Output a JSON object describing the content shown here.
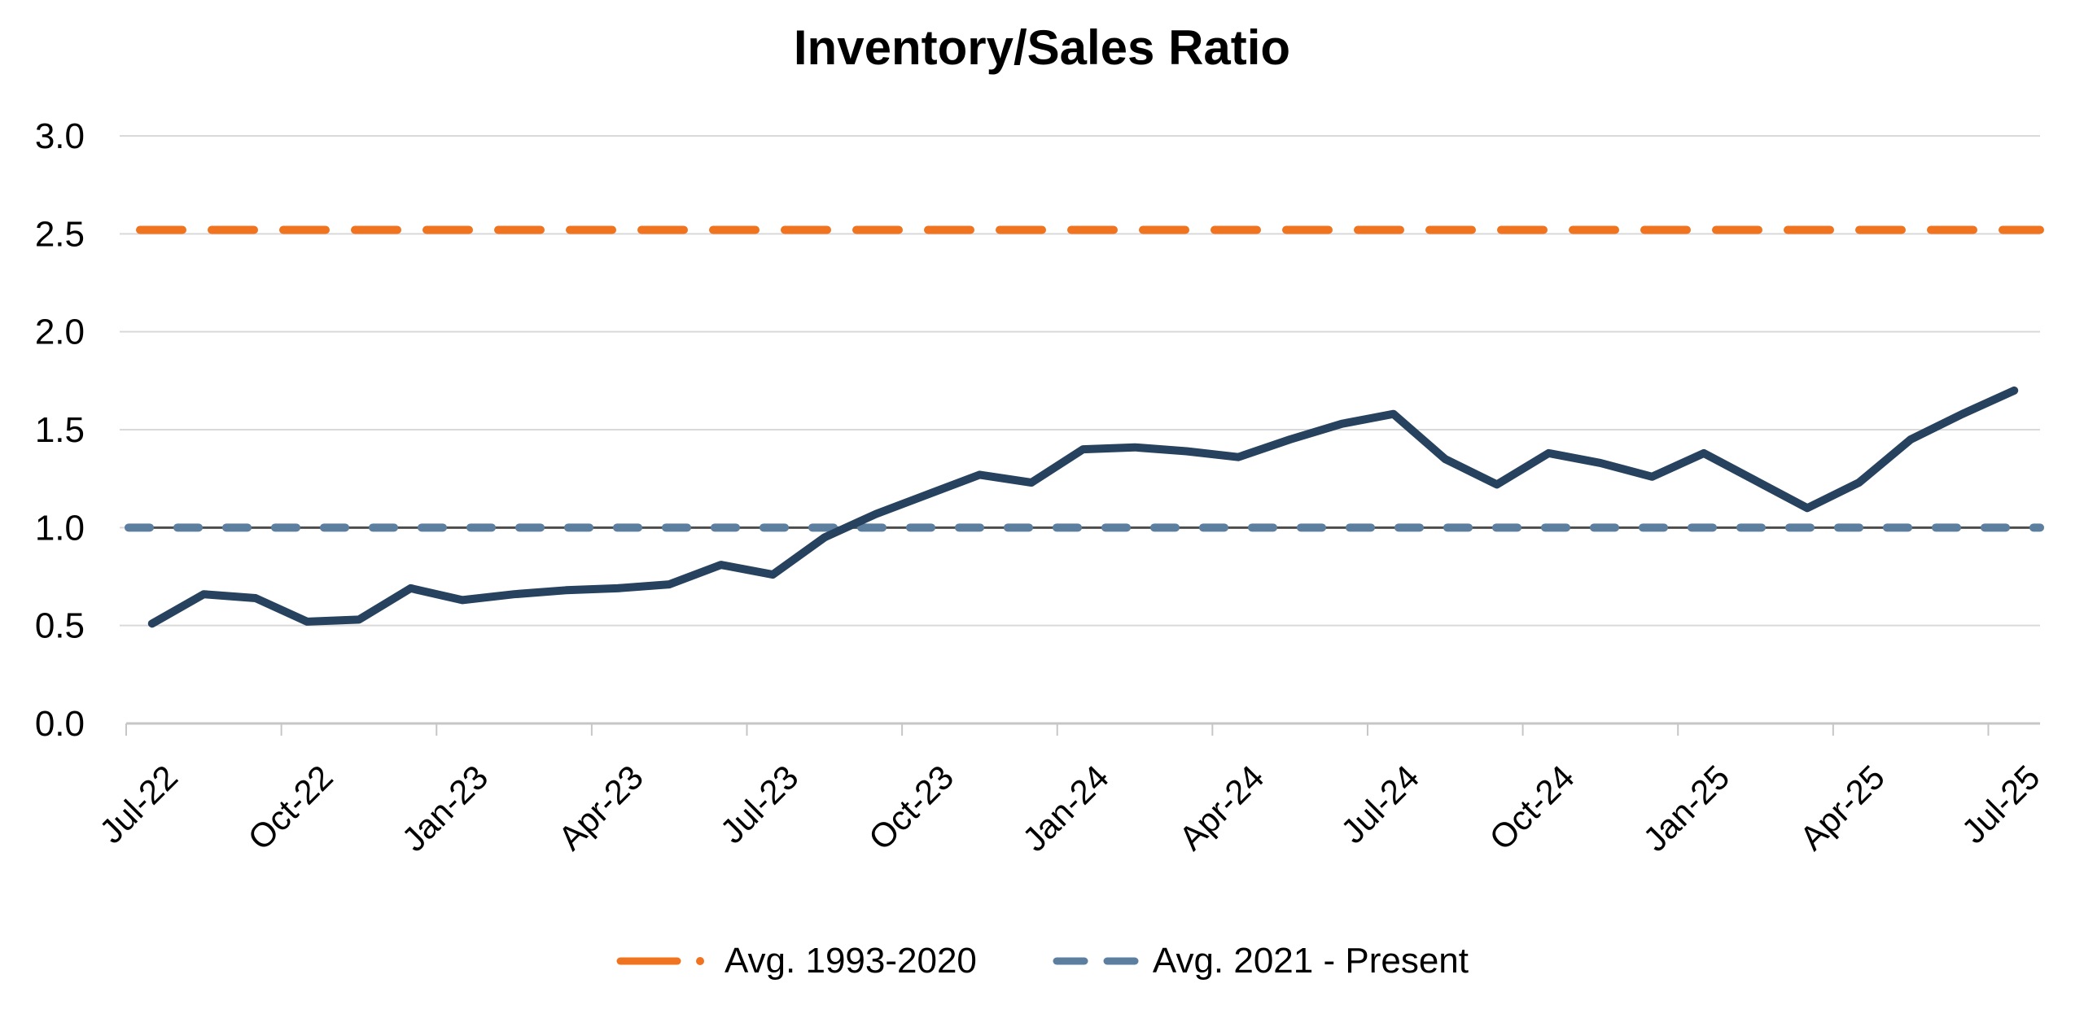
{
  "title": "Inventory/Sales Ratio",
  "chart_data": {
    "type": "line",
    "title": "Inventory/Sales Ratio",
    "grid": "horizontal",
    "legend_position": "bottom",
    "ylim": [
      0.0,
      3.0
    ],
    "y_tick_step": 0.5,
    "y_tick_labels": [
      "3.0",
      "2.5",
      "2.0",
      "1.5",
      "1.0",
      "0.5",
      "0.0"
    ],
    "x_axis_tick_labels": [
      "Jul-22",
      "Oct-22",
      "Jan-23",
      "Apr-23",
      "Jul-23",
      "Oct-23",
      "Jan-24",
      "Apr-24",
      "Jul-24",
      "Oct-24",
      "Jan-25",
      "Apr-25",
      "Jul-25"
    ],
    "months": [
      "Jul-22",
      "Aug-22",
      "Sep-22",
      "Oct-22",
      "Nov-22",
      "Dec-22",
      "Jan-23",
      "Feb-23",
      "Mar-23",
      "Apr-23",
      "May-23",
      "Jun-23",
      "Jul-23",
      "Aug-23",
      "Sep-23",
      "Oct-23",
      "Nov-23",
      "Dec-23",
      "Jan-24",
      "Feb-24",
      "Mar-24",
      "Apr-24",
      "May-24",
      "Jun-24",
      "Jul-24",
      "Aug-24",
      "Sep-24",
      "Oct-24",
      "Nov-24",
      "Dec-24",
      "Jan-25",
      "Feb-25",
      "Mar-25",
      "Apr-25",
      "May-25",
      "Jun-25",
      "Jul-25"
    ],
    "series": [
      {
        "name": "Inventory/Sales Ratio",
        "kind": "line",
        "color": "#26425E",
        "values": [
          0.51,
          0.66,
          0.64,
          0.52,
          0.53,
          0.69,
          0.63,
          0.66,
          0.68,
          0.69,
          0.71,
          0.81,
          0.76,
          0.95,
          1.07,
          1.17,
          1.27,
          1.23,
          1.4,
          1.41,
          1.39,
          1.36,
          1.45,
          1.53,
          1.58,
          1.35,
          1.22,
          1.38,
          1.33,
          1.26,
          1.38,
          1.24,
          1.1,
          1.23,
          1.45,
          1.58,
          1.7
        ]
      },
      {
        "name": "Avg. 1993-2020",
        "kind": "reference-line",
        "style": "dashed",
        "color": "#F0731F",
        "value": 2.52
      },
      {
        "name": "Avg. 2021 - Present",
        "kind": "reference-line",
        "style": "dashed",
        "color": "#5C7E9F",
        "value": 1.0
      }
    ]
  },
  "legend": {
    "items": [
      {
        "label": "Avg. 1993-2020",
        "color": "#F0731F",
        "marker": "long-dash-dot"
      },
      {
        "label": "Avg. 2021 - Present",
        "color": "#5C7E9F",
        "marker": "short-dashes"
      }
    ]
  },
  "colors": {
    "background": "#FFFFFF",
    "gridline": "#D9D9D9",
    "axis": "#C6C6C6",
    "reference_underline": "#4D4D4D",
    "text": "#000000"
  }
}
